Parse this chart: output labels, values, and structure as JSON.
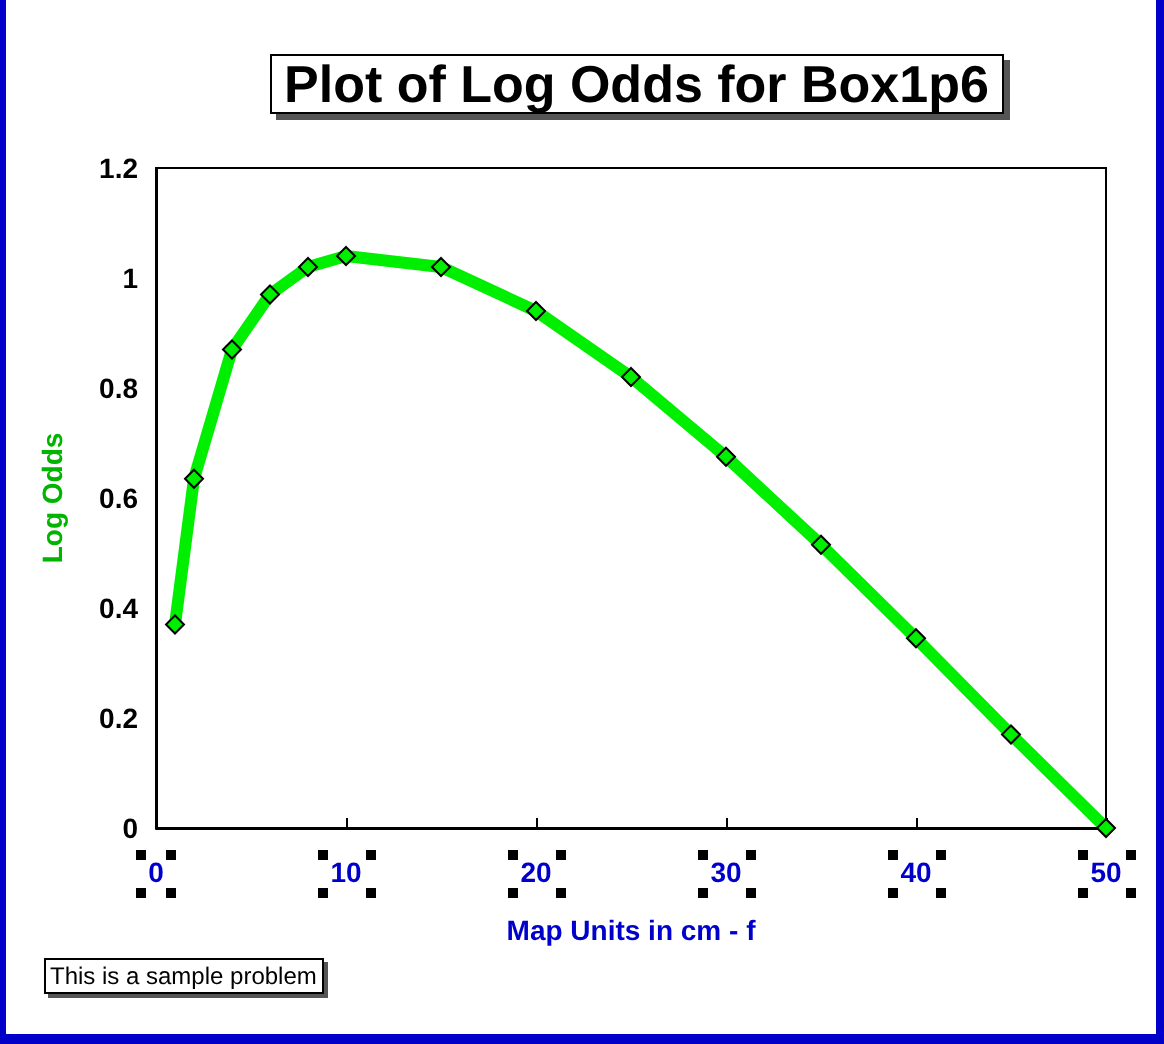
{
  "chart_data": {
    "type": "line",
    "title": "Plot of Log Odds for Box1p6",
    "xlabel": "Map Units in cm - f",
    "ylabel": "Log Odds",
    "annotations": [
      "This is a sample problem"
    ],
    "x": [
      1,
      2,
      4,
      6,
      8,
      10,
      15,
      20,
      25,
      30,
      35,
      40,
      45,
      50
    ],
    "series": [
      {
        "color": "#00ee00",
        "values": [
          0.37,
          0.635,
          0.87,
          0.97,
          1.02,
          1.04,
          1.02,
          0.94,
          0.82,
          0.675,
          0.515,
          0.345,
          0.17,
          0
        ]
      }
    ],
    "xlim": [
      0,
      50
    ],
    "xticks": [
      0,
      10,
      20,
      30,
      40,
      50
    ],
    "ylim": [
      0,
      1.2
    ],
    "yticks": [
      0,
      0.2,
      0.4,
      0.6,
      0.8,
      1,
      1.2
    ],
    "marker": "diamond",
    "line_style": "solid"
  }
}
